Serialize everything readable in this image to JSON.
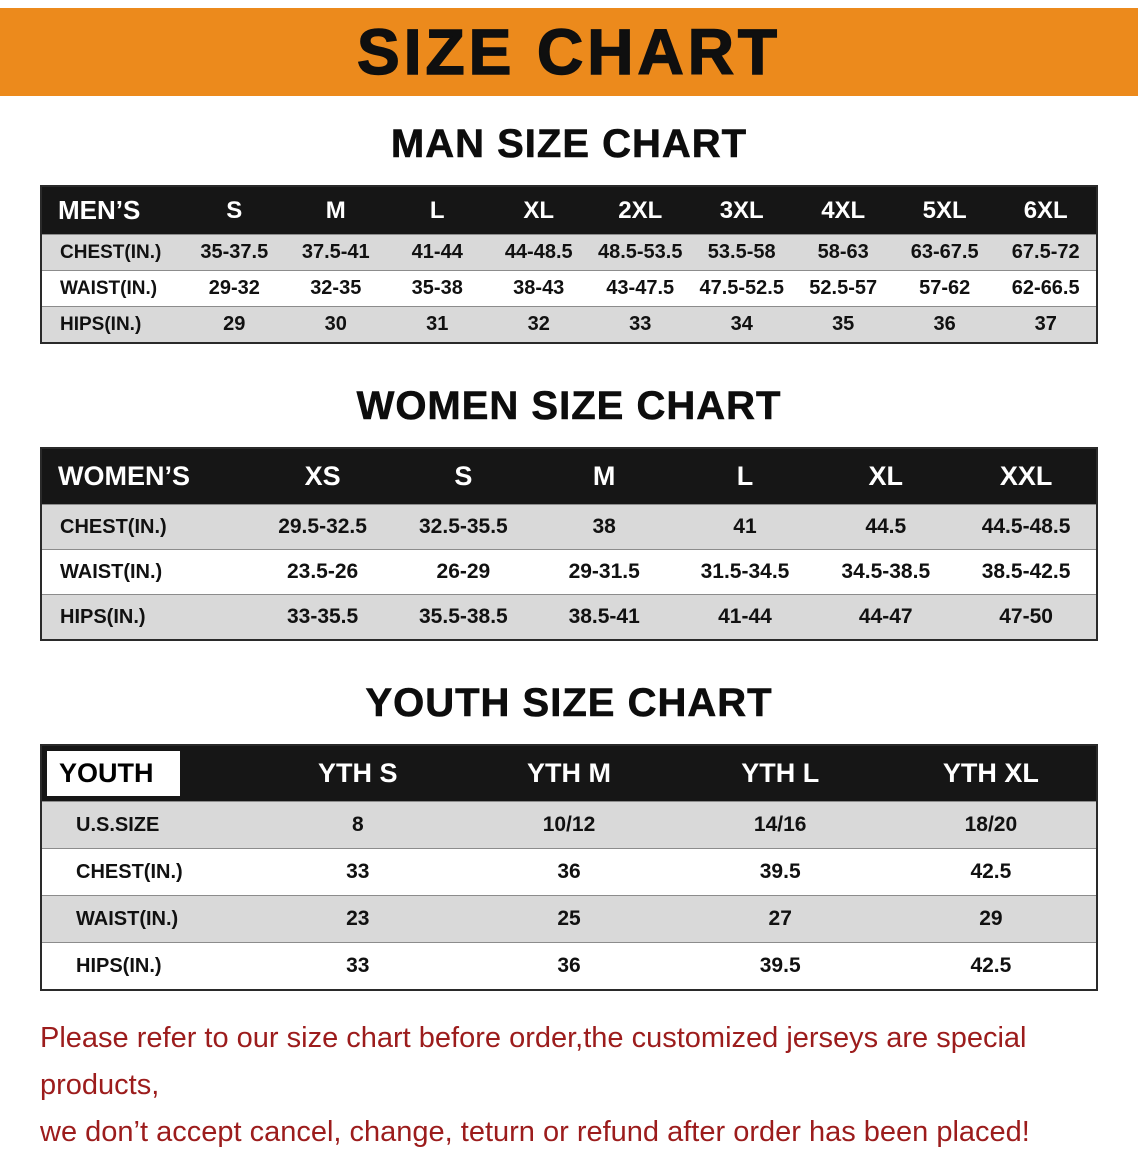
{
  "banner": {
    "title": "SIZE CHART"
  },
  "colors": {
    "banner_bg": "#EC8A1C",
    "banner_text": "#0F0F0F",
    "header_bg": "#161616",
    "header_text": "#FFFFFF",
    "row_alt": "#D9D9D9",
    "row_white": "#FFFFFF",
    "table_border": "#2A2A2A",
    "note_red": "#9C1C1C"
  },
  "sections": {
    "men": {
      "heading": "MAN SIZE CHART",
      "table": {
        "header": [
          "MEN’S",
          "S",
          "M",
          "L",
          "XL",
          "2XL",
          "3XL",
          "4XL",
          "5XL",
          "6XL"
        ],
        "rows": [
          [
            "CHEST(IN.)",
            "35-37.5",
            "37.5-41",
            "41-44",
            "44-48.5",
            "48.5-53.5",
            "53.5-58",
            "58-63",
            "63-67.5",
            "67.5-72"
          ],
          [
            "WAIST(IN.)",
            "29-32",
            "32-35",
            "35-38",
            "38-43",
            "43-47.5",
            "47.5-52.5",
            "52.5-57",
            "57-62",
            "62-66.5"
          ],
          [
            "HIPS(IN.)",
            "29",
            "30",
            "31",
            "32",
            "33",
            "34",
            "35",
            "36",
            "37"
          ]
        ]
      }
    },
    "women": {
      "heading": "WOMEN SIZE CHART",
      "table": {
        "header": [
          "WOMEN’S",
          "XS",
          "S",
          "M",
          "L",
          "XL",
          "XXL"
        ],
        "rows": [
          [
            "CHEST(IN.)",
            "29.5-32.5",
            "32.5-35.5",
            "38",
            "41",
            "44.5",
            "44.5-48.5"
          ],
          [
            "WAIST(IN.)",
            "23.5-26",
            "26-29",
            "29-31.5",
            "31.5-34.5",
            "34.5-38.5",
            "38.5-42.5"
          ],
          [
            "HIPS(IN.)",
            "33-35.5",
            "35.5-38.5",
            "38.5-41",
            "41-44",
            "44-47",
            "47-50"
          ]
        ]
      }
    },
    "youth": {
      "heading": "YOUTH SIZE CHART",
      "table": {
        "header": [
          "YOUTH",
          "YTH S",
          "YTH M",
          "YTH L",
          "YTH XL"
        ],
        "rows": [
          [
            "U.S.SIZE",
            "8",
            "10/12",
            "14/16",
            "18/20"
          ],
          [
            "CHEST(IN.)",
            "33",
            "36",
            "39.5",
            "42.5"
          ],
          [
            "WAIST(IN.)",
            "23",
            "25",
            "27",
            "29"
          ],
          [
            "HIPS(IN.)",
            "33",
            "36",
            "39.5",
            "42.5"
          ]
        ]
      }
    }
  },
  "note": {
    "line1": "Please refer to our size chart before order,the customized jerseys are special products,",
    "line2": "we don’t accept cancel, change, teturn or refund after order has been placed!"
  }
}
